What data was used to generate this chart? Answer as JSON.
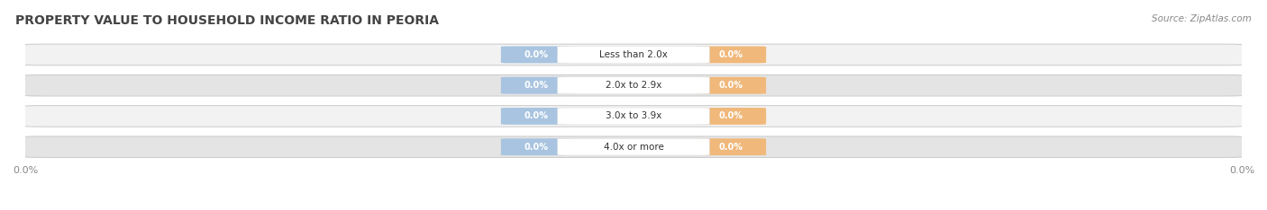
{
  "title": "PROPERTY VALUE TO HOUSEHOLD INCOME RATIO IN PEORIA",
  "source_text": "Source: ZipAtlas.com",
  "categories": [
    "Less than 2.0x",
    "2.0x to 2.9x",
    "3.0x to 3.9x",
    "4.0x or more"
  ],
  "without_mortgage": [
    0.0,
    0.0,
    0.0,
    0.0
  ],
  "with_mortgage": [
    0.0,
    0.0,
    0.0,
    0.0
  ],
  "without_mortgage_color": "#a8c4e0",
  "with_mortgage_color": "#f0b87a",
  "row_bg_light": "#f2f2f2",
  "row_bg_dark": "#e4e4e4",
  "row_border_color": "#cccccc",
  "title_color": "#444444",
  "title_fontsize": 10,
  "source_fontsize": 7.5,
  "axis_label_left": "0.0%",
  "axis_label_right": "0.0%",
  "figure_bg": "#ffffff",
  "label_fontsize": 7,
  "cat_fontsize": 7.5
}
